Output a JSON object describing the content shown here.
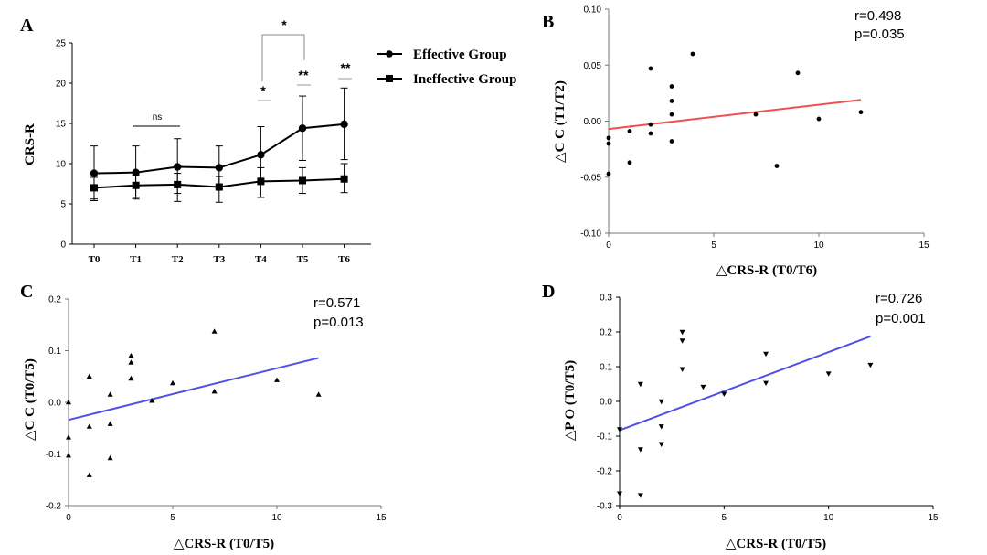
{
  "chart_data": [
    {
      "id": "A",
      "type": "line",
      "panel_label": "A",
      "ylabel": "CRS-R",
      "categories": [
        "T0",
        "T1",
        "T2",
        "T3",
        "T4",
        "T5",
        "T6"
      ],
      "ylim": [
        0,
        25
      ],
      "yticks": [
        0,
        5,
        10,
        15,
        20,
        25
      ],
      "series": [
        {
          "name": "Effective Group",
          "marker": "circle",
          "values": [
            8.8,
            8.9,
            9.6,
            9.5,
            11.1,
            14.4,
            14.9
          ],
          "err_upper": [
            12.2,
            12.2,
            13.1,
            12.2,
            14.6,
            18.4,
            19.4
          ],
          "err_lower": [
            5.6,
            5.8,
            6.3,
            6.9,
            7.8,
            10.4,
            10.5
          ]
        },
        {
          "name": "Ineffective Group",
          "marker": "square",
          "values": [
            7.0,
            7.3,
            7.4,
            7.1,
            7.8,
            7.9,
            8.1
          ],
          "err_upper": [
            8.3,
            8.6,
            8.8,
            8.4,
            9.5,
            9.5,
            10.0
          ],
          "err_lower": [
            5.4,
            5.6,
            5.3,
            5.2,
            5.8,
            6.3,
            6.4
          ]
        }
      ],
      "annotations": {
        "ns": "ns",
        "t4": "*",
        "t5": "**",
        "t6": "**",
        "bracket": "*"
      }
    },
    {
      "id": "B",
      "type": "scatter",
      "panel_label": "B",
      "ylabel": "△C C (T1/T2)",
      "xlabel": "△CRS-R (T0/T6)",
      "xlim": [
        0,
        15
      ],
      "ylim": [
        -0.1,
        0.1
      ],
      "xticks": [
        "0",
        "5",
        "10",
        "15"
      ],
      "yticks": [
        "-0.10",
        "-0.05",
        "0.00",
        "0.05",
        "0.10"
      ],
      "marker": "dot",
      "points": [
        [
          0,
          -0.015
        ],
        [
          0,
          -0.02
        ],
        [
          0,
          -0.047
        ],
        [
          1,
          -0.009
        ],
        [
          1,
          -0.037
        ],
        [
          2,
          0.047
        ],
        [
          2,
          -0.003
        ],
        [
          2,
          -0.011
        ],
        [
          3,
          0.031
        ],
        [
          3,
          0.018
        ],
        [
          3,
          0.006
        ],
        [
          3,
          -0.018
        ],
        [
          4,
          0.06
        ],
        [
          7,
          0.006
        ],
        [
          8,
          -0.04
        ],
        [
          9,
          0.043
        ],
        [
          10,
          0.002
        ],
        [
          12,
          0.008
        ]
      ],
      "fit": {
        "x": [
          0,
          12
        ],
        "y": [
          -0.007,
          0.019
        ],
        "color": "#f05050"
      },
      "stats": [
        "r=0.498",
        "p=0.035"
      ]
    },
    {
      "id": "C",
      "type": "scatter",
      "panel_label": "C",
      "ylabel": "△C C (T0/T5)",
      "xlabel": "△CRS-R (T0/T5)",
      "xlim": [
        0,
        15
      ],
      "ylim": [
        -0.2,
        0.2
      ],
      "xticks": [
        "0",
        "5",
        "10",
        "15"
      ],
      "yticks": [
        "-0.2",
        "-0.1",
        "0.0",
        "0.1",
        "0.2"
      ],
      "marker": "triangle-up",
      "points": [
        [
          0,
          0.0
        ],
        [
          0,
          -0.068
        ],
        [
          0,
          -0.103
        ],
        [
          1,
          0.05
        ],
        [
          1,
          -0.047
        ],
        [
          1,
          -0.141
        ],
        [
          2,
          0.015
        ],
        [
          2,
          -0.042
        ],
        [
          2,
          -0.108
        ],
        [
          3,
          0.09
        ],
        [
          3,
          0.077
        ],
        [
          3,
          0.046
        ],
        [
          4,
          0.003
        ],
        [
          5,
          0.037
        ],
        [
          7,
          0.137
        ],
        [
          7,
          0.021
        ],
        [
          10,
          0.043
        ],
        [
          12,
          0.015
        ]
      ],
      "fit": {
        "x": [
          0,
          12
        ],
        "y": [
          -0.034,
          0.086
        ],
        "color": "#5050e6"
      },
      "stats": [
        "r=0.571",
        "p=0.013"
      ]
    },
    {
      "id": "D",
      "type": "scatter",
      "panel_label": "D",
      "ylabel": "△P O (T0/T5)",
      "xlabel": "△CRS-R (T0/T5)",
      "xlim": [
        0,
        15
      ],
      "ylim": [
        -0.3,
        0.3
      ],
      "xticks": [
        "0",
        "5",
        "10",
        "15"
      ],
      "yticks": [
        "-0.3",
        "-0.2",
        "-0.1",
        "0.0",
        "0.1",
        "0.2",
        "0.3"
      ],
      "marker": "triangle-down",
      "points": [
        [
          0,
          -0.265
        ],
        [
          0,
          -0.08
        ],
        [
          1,
          0.05
        ],
        [
          1,
          -0.138
        ],
        [
          1,
          -0.27
        ],
        [
          2,
          0.0
        ],
        [
          2,
          -0.072
        ],
        [
          2,
          -0.123
        ],
        [
          3,
          0.2
        ],
        [
          3,
          0.175
        ],
        [
          3,
          0.093
        ],
        [
          4,
          0.042
        ],
        [
          5,
          0.022
        ],
        [
          7,
          0.137
        ],
        [
          7,
          0.053
        ],
        [
          10,
          0.08
        ],
        [
          12,
          0.105
        ]
      ],
      "fit": {
        "x": [
          0,
          12
        ],
        "y": [
          -0.083,
          0.187
        ],
        "color": "#5050e6"
      },
      "stats": [
        "r=0.726",
        "p=0.001"
      ]
    }
  ]
}
